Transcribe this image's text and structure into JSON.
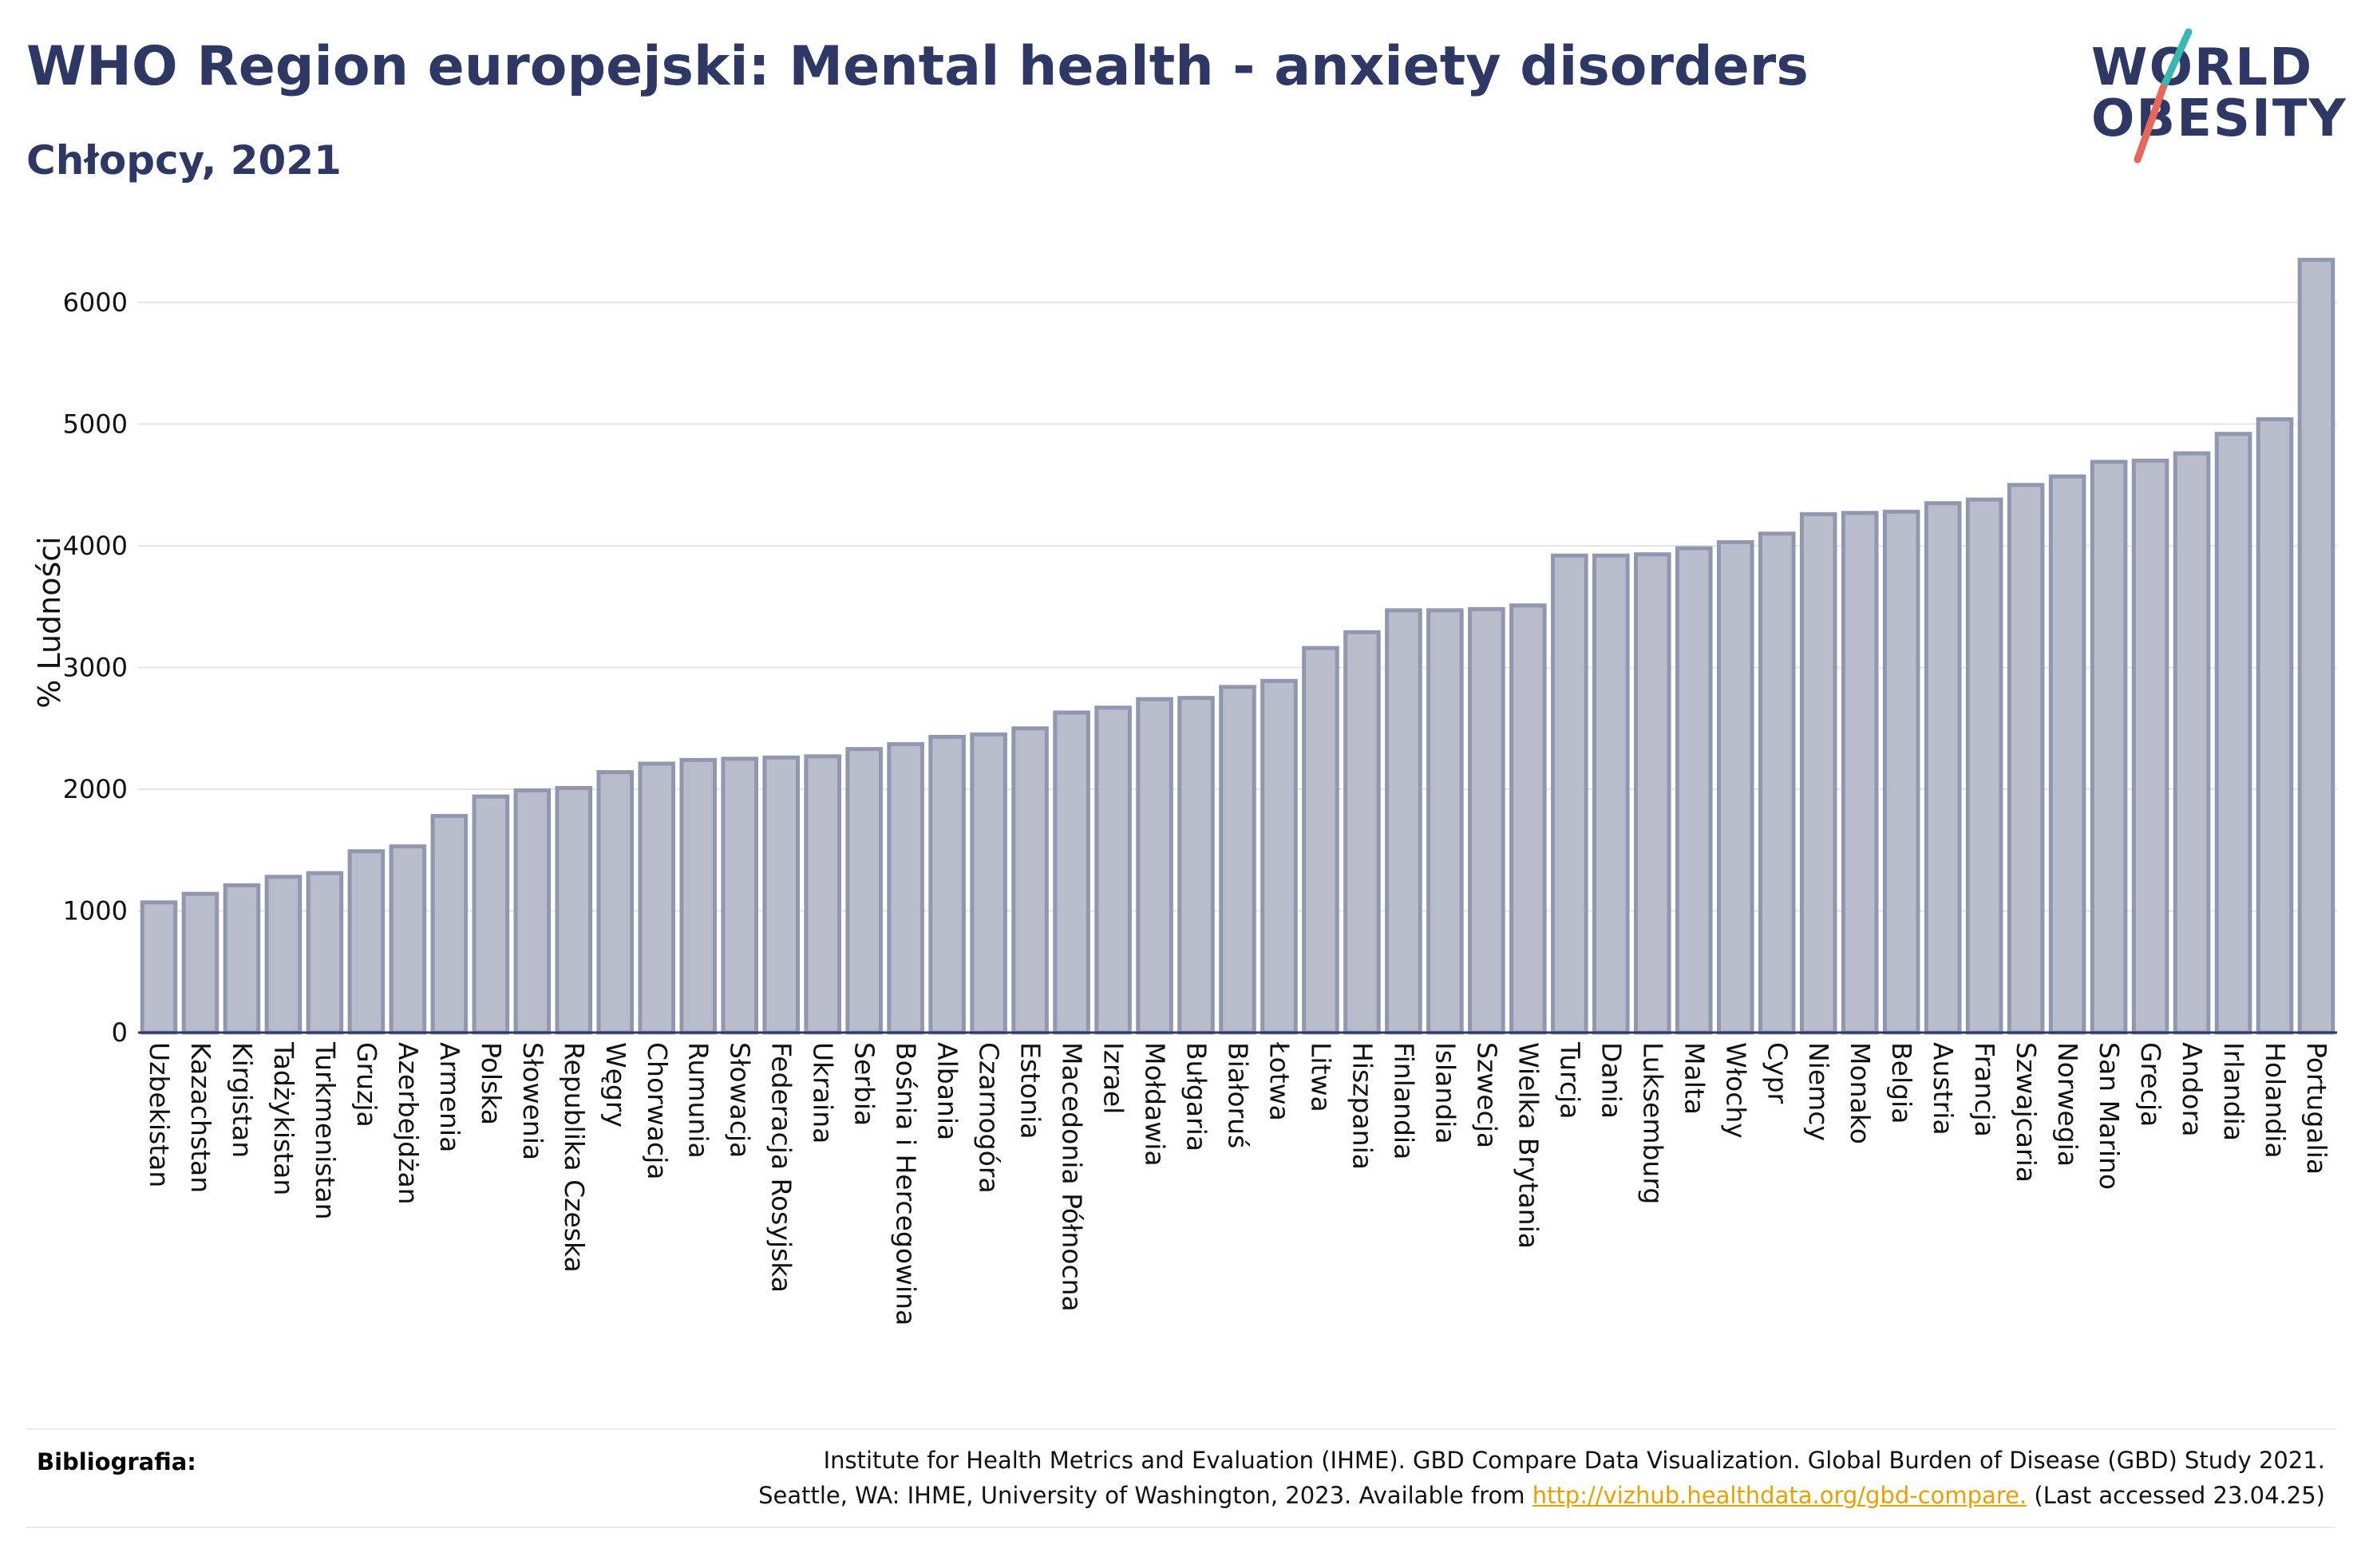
{
  "header": {
    "title": "WHO Region europejski: Mental health - anxiety disorders",
    "subtitle": "Chłopcy, 2021"
  },
  "logo": {
    "line1": "WORLD",
    "line2": "OBESITY",
    "colors": {
      "text": "#2d3865",
      "slash_top": "#3bb6b0",
      "slash_bottom": "#e8675a"
    }
  },
  "chart_data": {
    "type": "bar",
    "ylabel": "% Ludności",
    "ylim": [
      0,
      6500
    ],
    "yticks": [
      0,
      1000,
      2000,
      3000,
      4000,
      5000,
      6000
    ],
    "grid": true,
    "bar_color": "#b9bdcb",
    "bar_edge_color": "#9197b0",
    "categories": [
      "Uzbekistan",
      "Kazachstan",
      "Kirgistan",
      "Tadżykistan",
      "Turkmenistan",
      "Gruzja",
      "Azerbejdżan",
      "Armenia",
      "Polska",
      "Słowenia",
      "Republika Czeska",
      "Węgry",
      "Chorwacja",
      "Rumunia",
      "Słowacja",
      "Federacja Rosyjska",
      "Ukraina",
      "Serbia",
      "Bośnia i Hercegowina",
      "Albania",
      "Czarnogóra",
      "Estonia",
      "Macedonia Północna",
      "Izrael",
      "Mołdawia",
      "Bułgaria",
      "Białoruś",
      "Łotwa",
      "Litwa",
      "Hiszpania",
      "Finlandia",
      "Islandia",
      "Szwecja",
      "Wielka Brytania",
      "Turcja",
      "Dania",
      "Luksemburg",
      "Malta",
      "Włochy",
      "Cypr",
      "Niemcy",
      "Monako",
      "Belgia",
      "Austria",
      "Francja",
      "Szwajcaria",
      "Norwegia",
      "San Marino",
      "Grecja",
      "Andora",
      "Irlandia",
      "Holandia",
      "Portugalia"
    ],
    "values": [
      1070,
      1140,
      1210,
      1280,
      1310,
      1490,
      1530,
      1780,
      1940,
      1990,
      2010,
      2140,
      2210,
      2240,
      2250,
      2260,
      2270,
      2330,
      2370,
      2430,
      2450,
      2500,
      2630,
      2670,
      2740,
      2750,
      2840,
      2890,
      3160,
      3290,
      3470,
      3470,
      3480,
      3510,
      3920,
      3920,
      3930,
      3980,
      4030,
      4100,
      4260,
      4270,
      4280,
      4350,
      4380,
      4500,
      4570,
      4690,
      4700,
      4760,
      4920,
      5040,
      6350
    ]
  },
  "footer": {
    "bib_label": "Bibliografia:",
    "line1": "Institute for Health Metrics and Evaluation (IHME). GBD Compare Data Visualization. Global Burden of Disease (GBD) Study 2021.",
    "line2_pre": "Seattle, WA: IHME, University of Washington, 2023. Available from ",
    "link": "http://vizhub.healthdata.org/gbd-compare.",
    "line2_post": " (Last accessed 23.04.25)"
  }
}
